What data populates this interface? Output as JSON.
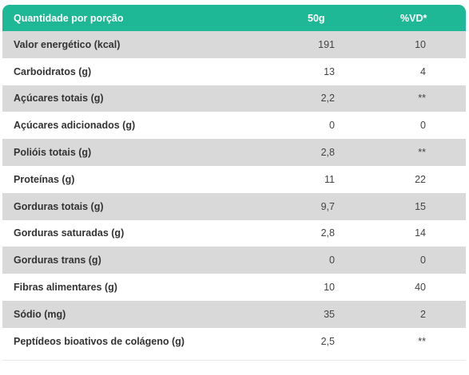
{
  "header": {
    "name": "Quantidade por porção",
    "amount": "50g",
    "vd": "%VD*"
  },
  "rows": [
    {
      "name": "Valor energético (kcal)",
      "amount": "191",
      "vd": "10"
    },
    {
      "name": "Carboidratos (g)",
      "amount": "13",
      "vd": "4"
    },
    {
      "name": "Açúcares totais (g)",
      "amount": "2,2",
      "vd": "**"
    },
    {
      "name": "Açúcares adicionados (g)",
      "amount": "0",
      "vd": "0"
    },
    {
      "name": "Polióis totais (g)",
      "amount": "2,8",
      "vd": "**"
    },
    {
      "name": "Proteínas (g)",
      "amount": "11",
      "vd": "22"
    },
    {
      "name": "Gorduras totais (g)",
      "amount": "9,7",
      "vd": "15"
    },
    {
      "name": "Gorduras saturadas (g)",
      "amount": "2,8",
      "vd": "14"
    },
    {
      "name": "Gorduras trans (g)",
      "amount": "0",
      "vd": "0"
    },
    {
      "name": "Fibras alimentares (g)",
      "amount": "10",
      "vd": "40"
    },
    {
      "name": "Sódio (mg)",
      "amount": "35",
      "vd": "2"
    },
    {
      "name": "Peptídeos bioativos de colágeno (g)",
      "amount": "2,5",
      "vd": "**"
    }
  ],
  "colors": {
    "header_bg": "#1fb897",
    "shade_row": "#d9d9d9"
  }
}
